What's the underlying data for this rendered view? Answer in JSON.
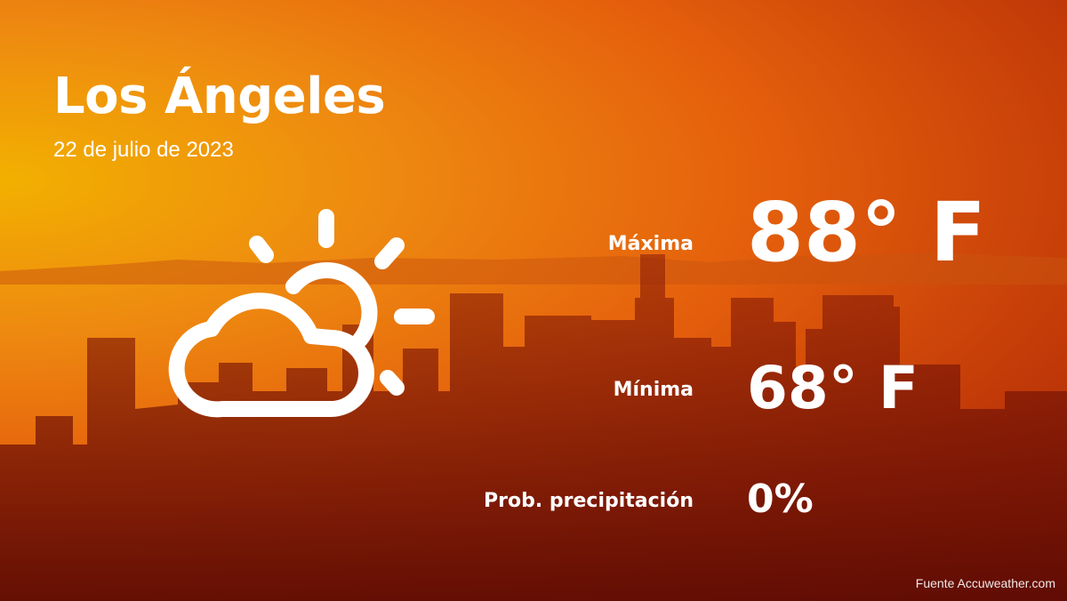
{
  "city": "Los Ángeles",
  "date": "22 de julio de 2023",
  "weather_icon": "partly-cloudy-icon",
  "max": {
    "label": "Máxima",
    "value": "88° F"
  },
  "min": {
    "label": "Mínima",
    "value": "68° F"
  },
  "precip": {
    "label": "Prob. precipitación",
    "value": "0%"
  },
  "source": "Fuente Accuweather.com"
}
